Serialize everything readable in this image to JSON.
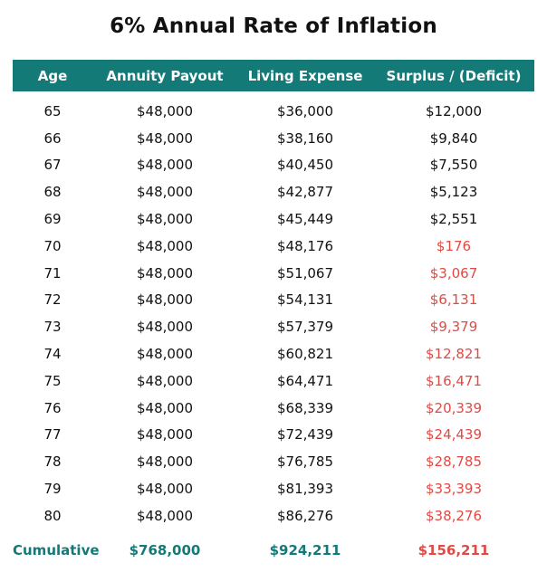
{
  "title": "6% Annual Rate of Inflation",
  "colors": {
    "header_bg": "#147a78",
    "header_text": "#ffffff",
    "deficit": "#e04a45",
    "summary_teal": "#147a78"
  },
  "columns": [
    "Age",
    "Annuity Payout",
    "Living Expense",
    "Surplus / (Deficit)"
  ],
  "rows": [
    {
      "age": "65",
      "payout": "$48,000",
      "expense": "$36,000",
      "surplus": "$12,000",
      "deficit": false
    },
    {
      "age": "66",
      "payout": "$48,000",
      "expense": "$38,160",
      "surplus": "$9,840",
      "deficit": false
    },
    {
      "age": "67",
      "payout": "$48,000",
      "expense": "$40,450",
      "surplus": "$7,550",
      "deficit": false
    },
    {
      "age": "68",
      "payout": "$48,000",
      "expense": "$42,877",
      "surplus": "$5,123",
      "deficit": false
    },
    {
      "age": "69",
      "payout": "$48,000",
      "expense": "$45,449",
      "surplus": "$2,551",
      "deficit": false
    },
    {
      "age": "70",
      "payout": "$48,000",
      "expense": "$48,176",
      "surplus": "$176",
      "deficit": true
    },
    {
      "age": "71",
      "payout": "$48,000",
      "expense": "$51,067",
      "surplus": "$3,067",
      "deficit": true
    },
    {
      "age": "72",
      "payout": "$48,000",
      "expense": "$54,131",
      "surplus": "$6,131",
      "deficit": true
    },
    {
      "age": "73",
      "payout": "$48,000",
      "expense": "$57,379",
      "surplus": "$9,379",
      "deficit": true
    },
    {
      "age": "74",
      "payout": "$48,000",
      "expense": "$60,821",
      "surplus": "$12,821",
      "deficit": true
    },
    {
      "age": "75",
      "payout": "$48,000",
      "expense": "$64,471",
      "surplus": "$16,471",
      "deficit": true
    },
    {
      "age": "76",
      "payout": "$48,000",
      "expense": "$68,339",
      "surplus": "$20,339",
      "deficit": true
    },
    {
      "age": "77",
      "payout": "$48,000",
      "expense": "$72,439",
      "surplus": "$24,439",
      "deficit": true
    },
    {
      "age": "78",
      "payout": "$48,000",
      "expense": "$76,785",
      "surplus": "$28,785",
      "deficit": true
    },
    {
      "age": "79",
      "payout": "$48,000",
      "expense": "$81,393",
      "surplus": "$33,393",
      "deficit": true
    },
    {
      "age": "80",
      "payout": "$48,000",
      "expense": "$86,276",
      "surplus": "$38,276",
      "deficit": true
    }
  ],
  "summary": {
    "label": "Cumulative",
    "payout": "$768,000",
    "expense": "$924,211",
    "surplus": "$156,211"
  }
}
